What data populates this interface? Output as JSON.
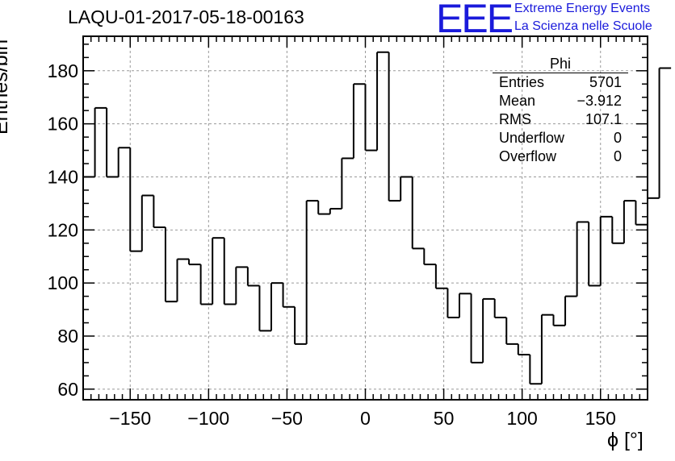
{
  "title": "LAQU-01-2017-05-18-00163",
  "logo": {
    "mark": "EEE",
    "line1": "Extreme Energy Events",
    "line2": "La Scienza nelle Scuole",
    "color": "#1a1adb"
  },
  "stats": {
    "title": "Phi",
    "rows": [
      {
        "label": "Entries",
        "value": "5701"
      },
      {
        "label": "Mean",
        "value": "−3.912"
      },
      {
        "label": "RMS",
        "value": "107.1"
      },
      {
        "label": "Underflow",
        "value": "0"
      },
      {
        "label": "Overflow",
        "value": "0"
      }
    ]
  },
  "chart_data": {
    "type": "histogram",
    "xlabel": "ϕ [°]",
    "ylabel": "Entries/bin",
    "xlim": [
      -180,
      180
    ],
    "ylim": [
      56,
      193
    ],
    "xticks": [
      -150,
      -100,
      -50,
      0,
      50,
      100,
      150
    ],
    "xtick_labels": [
      "−150",
      "−100",
      "−50",
      "0",
      "50",
      "100",
      "150"
    ],
    "yticks": [
      60,
      80,
      100,
      120,
      140,
      160,
      180
    ],
    "grid": true,
    "bin_width": 7.5,
    "bin_edges_start": -180,
    "values": [
      140,
      166,
      140,
      151,
      112,
      133,
      121,
      93,
      109,
      107,
      92,
      117,
      92,
      106,
      99,
      82,
      100,
      91,
      77,
      131,
      126,
      128,
      147,
      175,
      150,
      187,
      131,
      140,
      113,
      107,
      98,
      87,
      96,
      70,
      94,
      87,
      77,
      73,
      62,
      88,
      84,
      95,
      123,
      99,
      125,
      115,
      131,
      122,
      132,
      181
    ]
  }
}
